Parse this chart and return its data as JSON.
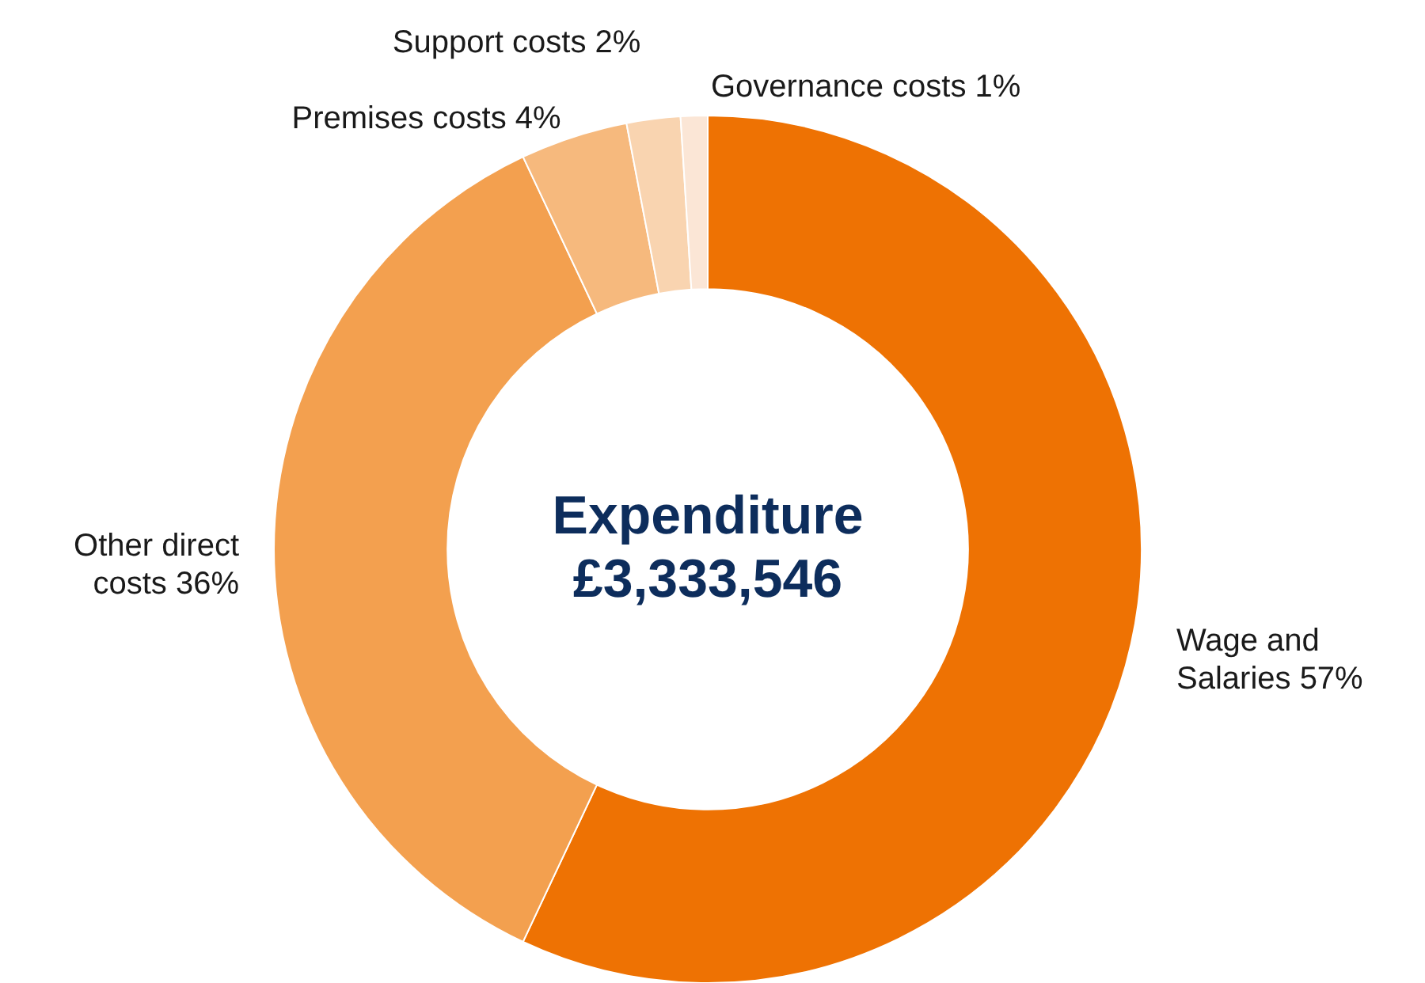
{
  "chart_data": {
    "type": "donut",
    "title": "Expenditure",
    "subtitle": "£3,333,546",
    "categories": [
      "Wage and Salaries",
      "Other direct costs",
      "Premises costs",
      "Support costs",
      "Governance costs"
    ],
    "values": [
      57,
      36,
      4,
      2,
      1
    ],
    "value_labels": [
      "57%",
      "36%",
      "4%",
      "2%",
      "1%"
    ],
    "colors": [
      "#ee7203",
      "#f3a04f",
      "#f6b97d",
      "#f9d4b0",
      "#fbe6d6"
    ]
  }
}
